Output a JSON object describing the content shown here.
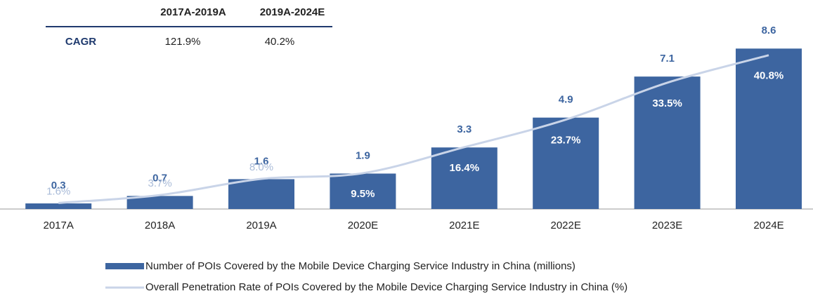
{
  "chart_data": {
    "type": "bar",
    "categories": [
      "2017A",
      "2018A",
      "2019A",
      "2020E",
      "2021E",
      "2022E",
      "2023E",
      "2024E"
    ],
    "series": [
      {
        "name": "Number of POIs Covered by the Mobile Device Charging Service Industry in China (millions)",
        "type": "bar",
        "color": "#3d65a0",
        "values": [
          0.3,
          0.7,
          1.6,
          1.9,
          3.3,
          4.9,
          7.1,
          8.6
        ]
      },
      {
        "name": "Overall Penetration Rate of POIs Covered by the Mobile Device Charging Service Industry in China (%)",
        "type": "line",
        "color": "#c9d4e8",
        "axis": "y2",
        "values": [
          1.6,
          3.7,
          8.0,
          9.5,
          16.4,
          23.7,
          33.5,
          40.8
        ],
        "value_labels": [
          "1.6%",
          "3.7%",
          "8.0%",
          "9.5%",
          "16.4%",
          "23.7%",
          "33.5%",
          "40.8%"
        ]
      }
    ],
    "ylim": [
      0,
      9.7
    ],
    "y2lim": [
      0,
      48
    ],
    "legend": "bottom"
  },
  "table": {
    "columns": [
      "2017A-2019A",
      "2019A-2024E"
    ],
    "rows": [
      [
        "CAGR",
        "121.9%",
        "40.2%"
      ]
    ]
  }
}
